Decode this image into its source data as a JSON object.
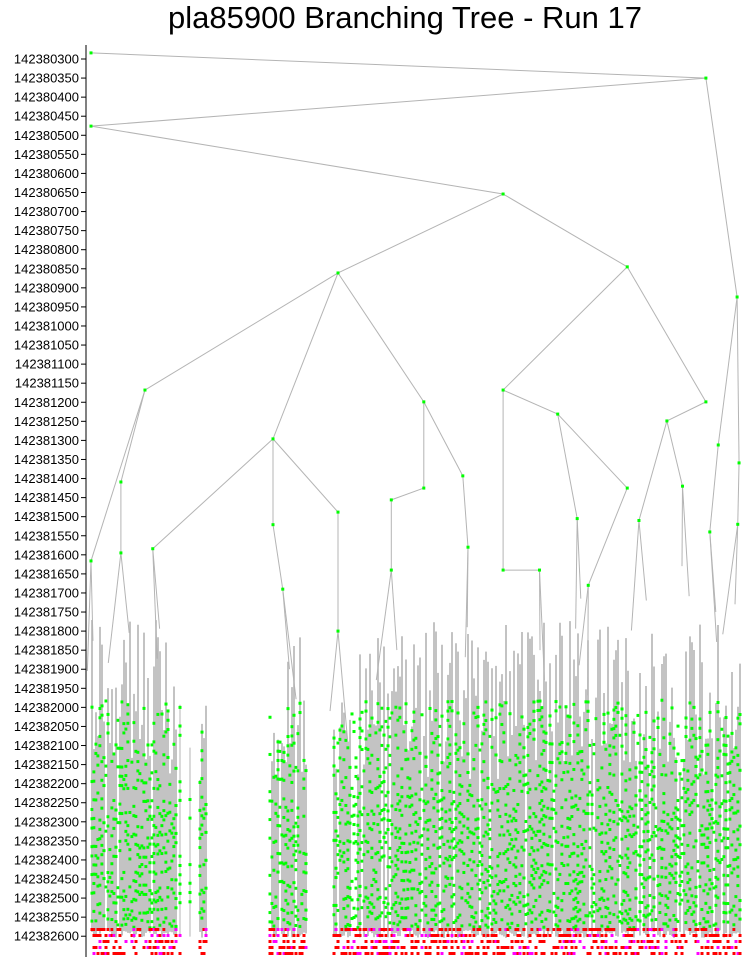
{
  "chart_data": {
    "type": "tree",
    "title": "pla85900 Branching Tree - Run 17",
    "xlabel": "",
    "ylabel": "",
    "ylim": [
      142380285,
      142382640
    ],
    "yticks": [
      142380300,
      142380350,
      142380400,
      142380450,
      142380500,
      142380550,
      142380600,
      142380650,
      142380700,
      142380750,
      142380800,
      142380850,
      142380900,
      142380950,
      142381000,
      142381050,
      142381100,
      142381150,
      142381200,
      142381250,
      142381300,
      142381350,
      142381400,
      142381450,
      142381500,
      142381550,
      142381600,
      142381650,
      142381700,
      142381750,
      142381800,
      142381850,
      142381900,
      142381950,
      142382000,
      142382050,
      142382100,
      142382150,
      142382200,
      142382250,
      142382300,
      142382350,
      142382400,
      142382450,
      142382500,
      142382550,
      142382600
    ],
    "grid": false,
    "colors": {
      "node": "#00ff00",
      "edge": "#b4b4b4",
      "pruned": "#ff0000",
      "infeasible": "#ff00ff",
      "axis": "#000000"
    },
    "nodes": [
      {
        "id": "A",
        "parent": null,
        "x": 0,
        "y": 142380284
      },
      {
        "id": "B",
        "parent": "A",
        "x": 94.6,
        "y": 142380350
      },
      {
        "id": "C",
        "parent": "B",
        "x": 0,
        "y": 142380476
      },
      {
        "id": "D",
        "parent": "C",
        "x": 63.4,
        "y": 142380654
      },
      {
        "id": "E",
        "parent": "D",
        "x": 38,
        "y": 142380861
      },
      {
        "id": "F",
        "parent": "D",
        "x": 82.5,
        "y": 142380845
      },
      {
        "id": "G",
        "parent": "B",
        "x": 99.4,
        "y": 142380924
      },
      {
        "id": "H",
        "parent": "E",
        "x": 8.3,
        "y": 142381168
      },
      {
        "id": "I",
        "parent": "E",
        "x": 28,
        "y": 142381296
      },
      {
        "id": "J",
        "parent": "F",
        "x": 63.4,
        "y": 142381168
      },
      {
        "id": "K",
        "parent": "F",
        "x": 94.6,
        "y": 142381199
      },
      {
        "id": "L",
        "parent": "E",
        "x": 51.2,
        "y": 142381199
      },
      {
        "id": "M",
        "parent": "J",
        "x": 71.8,
        "y": 142381231
      },
      {
        "id": "N",
        "parent": "K",
        "x": 88.6,
        "y": 142381249
      },
      {
        "id": "O",
        "parent": "G",
        "x": 96.5,
        "y": 142381312
      },
      {
        "id": "P",
        "parent": "G",
        "x": 99.7,
        "y": 142381359
      },
      {
        "id": "Q",
        "parent": "H",
        "x": 4.6,
        "y": 142381409
      },
      {
        "id": "R",
        "parent": "H",
        "x": 0,
        "y": 142381616
      },
      {
        "id": "S",
        "parent": "I",
        "x": 9.5,
        "y": 142381584
      },
      {
        "id": "T",
        "parent": "I",
        "x": 28,
        "y": 142381521
      },
      {
        "id": "U",
        "parent": "I",
        "x": 38,
        "y": 142381488
      },
      {
        "id": "V",
        "parent": "L",
        "x": 57.2,
        "y": 142381393
      },
      {
        "id": "W",
        "parent": "L",
        "x": 51.2,
        "y": 142381425
      },
      {
        "id": "X",
        "parent": "W",
        "x": 46.2,
        "y": 142381456
      },
      {
        "id": "Y",
        "parent": "M",
        "x": 82.5,
        "y": 142381425
      },
      {
        "id": "Z",
        "parent": "J",
        "x": 63.4,
        "y": 142381640
      },
      {
        "id": "AA",
        "parent": "M",
        "x": 74.8,
        "y": 142381505
      },
      {
        "id": "AB",
        "parent": "N",
        "x": 84.3,
        "y": 142381510
      },
      {
        "id": "AC",
        "parent": "N",
        "x": 91,
        "y": 142381420
      },
      {
        "id": "AD",
        "parent": "O",
        "x": 95.2,
        "y": 142381540
      },
      {
        "id": "AE",
        "parent": "P",
        "x": 99.5,
        "y": 142381520
      },
      {
        "id": "AF",
        "parent": "Q",
        "x": 4.6,
        "y": 142381595
      },
      {
        "id": "AG",
        "parent": "T",
        "x": 29.5,
        "y": 142381690
      },
      {
        "id": "AH",
        "parent": "U",
        "x": 38,
        "y": 142381800
      },
      {
        "id": "AI",
        "parent": "V",
        "x": 58,
        "y": 142381580
      },
      {
        "id": "AJ",
        "parent": "X",
        "x": 46.2,
        "y": 142381640
      },
      {
        "id": "AK",
        "parent": "Z",
        "x": 69,
        "y": 142381640
      },
      {
        "id": "AL",
        "parent": "Y",
        "x": 76.5,
        "y": 142381680
      }
    ]
  }
}
